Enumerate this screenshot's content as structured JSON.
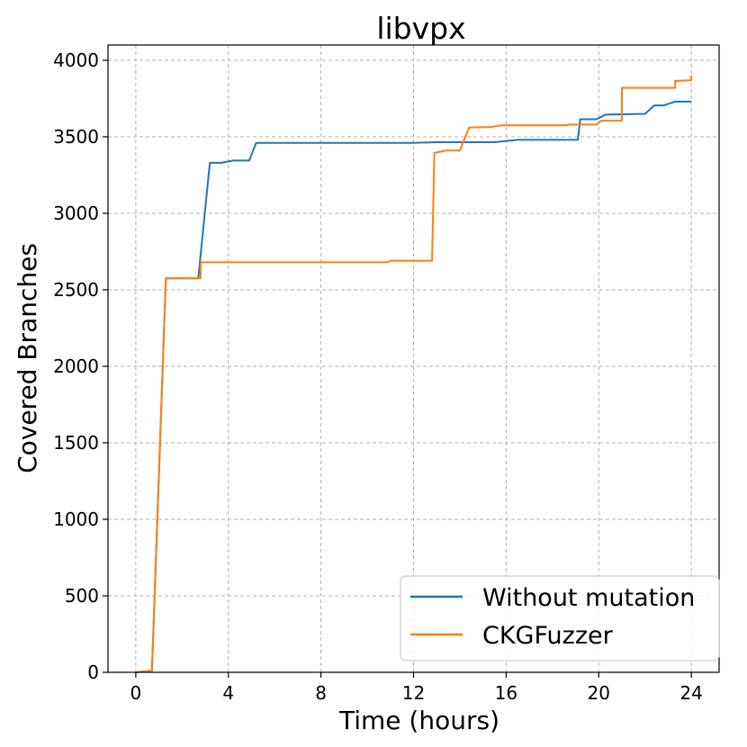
{
  "chart_data": {
    "type": "line",
    "title": "libvpx",
    "xlabel": "Time (hours)",
    "ylabel": "Covered Branches",
    "xlim": [
      -1.2,
      25.2
    ],
    "ylim": [
      0,
      4100
    ],
    "xticks": [
      0,
      4,
      8,
      12,
      16,
      20,
      24
    ],
    "yticks": [
      0,
      500,
      1000,
      1500,
      2000,
      2500,
      3000,
      3500,
      4000
    ],
    "grid": true,
    "legend_position": "lower-right",
    "series": [
      {
        "name": "Without mutation",
        "color": "#1f77b4",
        "points": [
          [
            0,
            0
          ],
          [
            0.7,
            10
          ],
          [
            1.3,
            2575
          ],
          [
            2.7,
            2575
          ],
          [
            3.2,
            3330
          ],
          [
            3.7,
            3330
          ],
          [
            4.2,
            3345
          ],
          [
            4.9,
            3345
          ],
          [
            5.2,
            3460
          ],
          [
            12,
            3460
          ],
          [
            13,
            3465
          ],
          [
            15.5,
            3465
          ],
          [
            16.5,
            3480
          ],
          [
            19.1,
            3480
          ],
          [
            19.2,
            3615
          ],
          [
            19.9,
            3615
          ],
          [
            20.3,
            3645
          ],
          [
            22,
            3650
          ],
          [
            22.4,
            3705
          ],
          [
            22.8,
            3705
          ],
          [
            23.3,
            3730
          ],
          [
            24,
            3730
          ]
        ]
      },
      {
        "name": "CKGFuzzer",
        "color": "#ff7f0e",
        "points": [
          [
            0,
            0
          ],
          [
            0.7,
            10
          ],
          [
            1.3,
            2575
          ],
          [
            2.8,
            2575
          ],
          [
            2.8,
            2680
          ],
          [
            10.9,
            2680
          ],
          [
            11,
            2690
          ],
          [
            12.8,
            2690
          ],
          [
            12.9,
            3395
          ],
          [
            13.4,
            3410
          ],
          [
            14,
            3410
          ],
          [
            14.4,
            3560
          ],
          [
            15.4,
            3565
          ],
          [
            15.8,
            3575
          ],
          [
            18.6,
            3575
          ],
          [
            18.7,
            3580
          ],
          [
            19.9,
            3580
          ],
          [
            20.1,
            3605
          ],
          [
            21,
            3605
          ],
          [
            21,
            3820
          ],
          [
            23.3,
            3820
          ],
          [
            23.3,
            3865
          ],
          [
            24,
            3870
          ],
          [
            24,
            3900
          ]
        ]
      }
    ]
  }
}
